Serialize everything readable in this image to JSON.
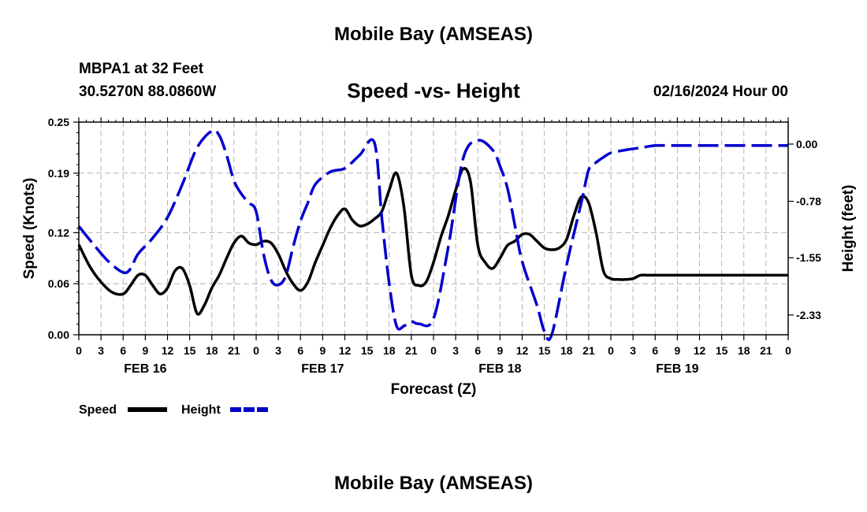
{
  "header": {
    "title": "Mobile Bay (AMSEAS)",
    "station": "MBPA1 at 32 Feet",
    "coords": "30.5270N  88.0860W",
    "datetime": "02/16/2024 Hour 00",
    "footer_title": "Mobile Bay (AMSEAS)"
  },
  "colors": {
    "speed": "#000000",
    "height": "#0000cc",
    "grid": "#b4b4b4"
  },
  "chart_data": {
    "type": "line",
    "title": "Speed -vs- Height",
    "xlabel": "Forecast (Z)",
    "ylabel": "Speed (Knots)",
    "y2label": "Height (feet)",
    "grid": true,
    "legend_placement": "bottom-left",
    "x_range_hours": [
      0,
      96
    ],
    "x_tick_labels": [
      "0",
      "3",
      "6",
      "9",
      "12",
      "15",
      "18",
      "21",
      "0",
      "3",
      "6",
      "9",
      "12",
      "15",
      "18",
      "21",
      "0",
      "3",
      "6",
      "9",
      "12",
      "15",
      "18",
      "21",
      "0",
      "3",
      "6",
      "9",
      "12",
      "15",
      "18",
      "21",
      "0"
    ],
    "date_labels": [
      {
        "hour": 9,
        "label": "FEB 16"
      },
      {
        "hour": 33,
        "label": "FEB 17"
      },
      {
        "hour": 57,
        "label": "FEB 18"
      },
      {
        "hour": 81,
        "label": "FEB 19"
      }
    ],
    "ylim": [
      0,
      0.25
    ],
    "y_ticks": [
      0.0,
      0.06,
      0.12,
      0.19,
      0.25
    ],
    "y_tick_labels": [
      "0.00",
      "0.06",
      "0.12",
      "0.19",
      "0.25"
    ],
    "y2lim": [
      -2.6,
      0.3
    ],
    "y2_ticks": [
      0.0,
      -0.78,
      -1.55,
      -2.33
    ],
    "y2_tick_labels": [
      "0.00",
      "-0.78",
      "-1.55",
      "-2.33"
    ],
    "series": [
      {
        "name": "Speed",
        "axis": "left",
        "style": "solid",
        "x": [
          0,
          1.5,
          3,
          4.5,
          6,
          7,
          8,
          9,
          10,
          11,
          12,
          13,
          14,
          15,
          16,
          17,
          18,
          19,
          20,
          21,
          22,
          23,
          24,
          25,
          26,
          27,
          28,
          29,
          30,
          31,
          32,
          33,
          34,
          35,
          36,
          37,
          38,
          39,
          40,
          41,
          42,
          43,
          44,
          45,
          46,
          47,
          48,
          49,
          50,
          51,
          52,
          53,
          54,
          55,
          56,
          57,
          58,
          59,
          60,
          61,
          62,
          63,
          64,
          65,
          66,
          67,
          68,
          69,
          70,
          71,
          72,
          73,
          74,
          75,
          76,
          77,
          78,
          79,
          80,
          81,
          82,
          83,
          84,
          85,
          86,
          87,
          88,
          89,
          90,
          91,
          92,
          93,
          94,
          95,
          96
        ],
        "values": [
          0.106,
          0.08,
          0.062,
          0.05,
          0.048,
          0.058,
          0.07,
          0.07,
          0.058,
          0.048,
          0.055,
          0.075,
          0.078,
          0.058,
          0.025,
          0.035,
          0.055,
          0.07,
          0.09,
          0.108,
          0.116,
          0.108,
          0.106,
          0.11,
          0.108,
          0.095,
          0.075,
          0.06,
          0.052,
          0.062,
          0.085,
          0.105,
          0.125,
          0.14,
          0.148,
          0.135,
          0.128,
          0.13,
          0.136,
          0.145,
          0.17,
          0.19,
          0.15,
          0.07,
          0.058,
          0.062,
          0.085,
          0.115,
          0.14,
          0.17,
          0.195,
          0.18,
          0.105,
          0.085,
          0.078,
          0.09,
          0.105,
          0.11,
          0.118,
          0.118,
          0.11,
          0.102,
          0.1,
          0.102,
          0.112,
          0.14,
          0.162,
          0.155,
          0.12,
          0.075,
          0.066,
          0.065,
          0.065,
          0.066,
          0.07,
          0.07,
          0.07,
          0.07,
          0.07,
          0.07,
          0.07,
          0.07,
          0.07,
          0.07,
          0.07,
          0.07,
          0.07,
          0.07,
          0.07,
          0.07,
          0.07,
          0.07,
          0.07,
          0.07,
          0.07
        ]
      },
      {
        "name": "Height",
        "axis": "right",
        "style": "dashed",
        "x": [
          0,
          2,
          4,
          6,
          7,
          8,
          10,
          12,
          14,
          16,
          18,
          19,
          20,
          21,
          22,
          23,
          24,
          25,
          26,
          27,
          28,
          29,
          30,
          31,
          32,
          34,
          36,
          38,
          40,
          41,
          42,
          43,
          44,
          45,
          46,
          48,
          50,
          52,
          54,
          56,
          57,
          58,
          59,
          60,
          62,
          63,
          64,
          66,
          68,
          69,
          70,
          71,
          72,
          74,
          76,
          78,
          80,
          81,
          82,
          84,
          86,
          88,
          90,
          92,
          94,
          96
        ],
        "values": [
          -1.12,
          -1.37,
          -1.6,
          -1.75,
          -1.7,
          -1.5,
          -1.28,
          -1.0,
          -0.55,
          -0.05,
          0.18,
          0.12,
          -0.15,
          -0.5,
          -0.68,
          -0.8,
          -0.92,
          -1.5,
          -1.85,
          -1.92,
          -1.8,
          -1.4,
          -1.05,
          -0.8,
          -0.55,
          -0.38,
          -0.33,
          -0.15,
          0.02,
          -1.0,
          -1.9,
          -2.48,
          -2.48,
          -2.42,
          -2.45,
          -2.38,
          -1.4,
          -0.2,
          0.05,
          -0.08,
          -0.3,
          -0.6,
          -1.1,
          -1.6,
          -2.2,
          -2.55,
          -2.6,
          -1.65,
          -0.8,
          -0.35,
          -0.25,
          -0.18,
          -0.12,
          -0.08,
          -0.05,
          -0.02,
          -0.02,
          -0.02,
          -0.02,
          -0.02,
          -0.02,
          -0.02,
          -0.02,
          -0.02,
          -0.02,
          -0.02
        ]
      }
    ]
  }
}
